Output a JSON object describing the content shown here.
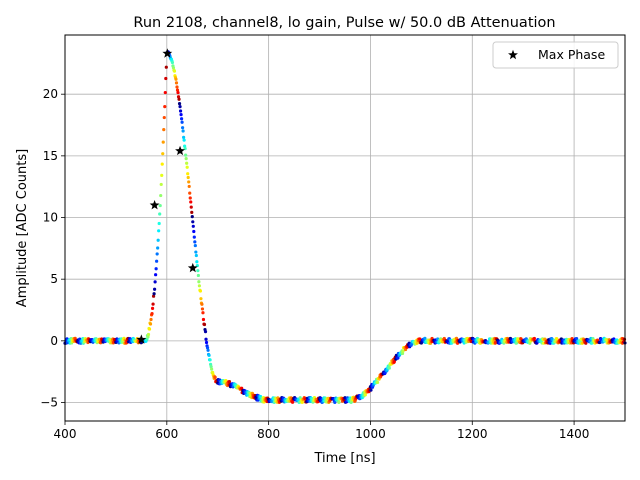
{
  "chart_data": {
    "type": "scatter",
    "title": "Run 2108, channel8, lo gain, Pulse w/ 50.0 dB Attenuation",
    "xlabel": "Time [ns]",
    "ylabel": "Amplitude [ADC Counts]",
    "xlim": [
      400,
      1500
    ],
    "ylim": [
      -6.5,
      24.8
    ],
    "xticks": [
      400,
      600,
      800,
      1000,
      1200,
      1400
    ],
    "yticks": [
      -5,
      0,
      5,
      10,
      15,
      20
    ],
    "grid": true,
    "legend": {
      "position": "upper-right",
      "entries": [
        "Max Phase"
      ]
    },
    "colormap": "jet",
    "pulse_model": {
      "baseline": 0.0,
      "start_ns": 555,
      "peak_ns": 600,
      "peak_amplitude": 23.4,
      "undershoot_amplitude": -4.8,
      "undershoot_plateau_ns": [
        800,
        960
      ],
      "recovery_ns": [
        960,
        1100
      ],
      "sample_spacing_ns": 1.0,
      "noise_amplitude": 0.2
    },
    "series": [
      {
        "name": "Max Phase",
        "marker": "star",
        "color": "#000000",
        "points": [
          {
            "x": 550,
            "y": 0.1
          },
          {
            "x": 576,
            "y": 11.0
          },
          {
            "x": 601,
            "y": 23.3
          },
          {
            "x": 626,
            "y": 15.4
          },
          {
            "x": 651,
            "y": 5.9
          }
        ]
      }
    ]
  }
}
